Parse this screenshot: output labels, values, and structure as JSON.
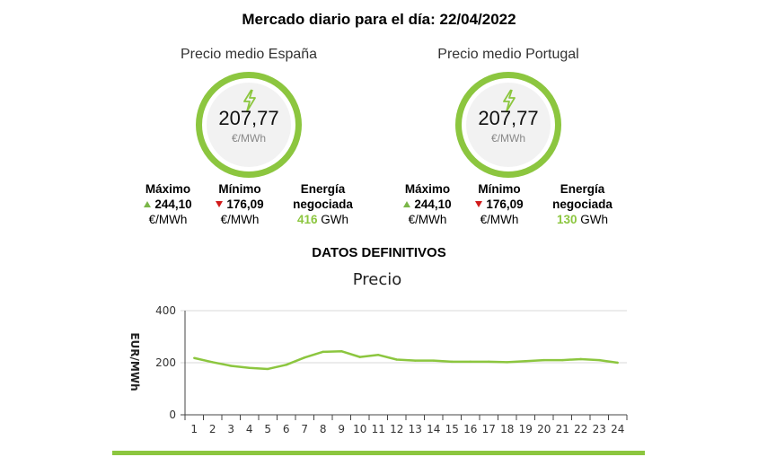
{
  "page": {
    "title": "Mercado diario para el día: 22/04/2022",
    "datos_label": "DATOS DEFINITIVOS"
  },
  "colors": {
    "accent": "#8cc63f",
    "up": "#7ab648",
    "down": "#d11a1a",
    "line": "#8cc63f"
  },
  "markets": [
    {
      "heading": "Precio medio España",
      "price": "207,77",
      "unit": "€/MWh",
      "icon": "lightning-bolt-icon",
      "max_label": "Máximo",
      "max_value": "244,10",
      "max_unit": "€/MWh",
      "min_label": "Mínimo",
      "min_value": "176,09",
      "min_unit": "€/MWh",
      "energy_label_1": "Energía",
      "energy_label_2": "negociada",
      "energy_value": "416",
      "energy_unit": "GWh"
    },
    {
      "heading": "Precio medio Portugal",
      "price": "207,77",
      "unit": "€/MWh",
      "icon": "lightning-bolt-icon",
      "max_label": "Máximo",
      "max_value": "244,10",
      "max_unit": "€/MWh",
      "min_label": "Mínimo",
      "min_value": "176,09",
      "min_unit": "€/MWh",
      "energy_label_1": "Energía",
      "energy_label_2": "negociada",
      "energy_value": "130",
      "energy_unit": "GWh"
    }
  ],
  "chart_data": {
    "type": "line",
    "title": "Precio",
    "xlabel": "",
    "ylabel": "EUR/MWh",
    "ylim": [
      0,
      400
    ],
    "yticks": [
      0,
      200,
      400
    ],
    "grid": true,
    "categories": [
      "1",
      "2",
      "3",
      "4",
      "5",
      "6",
      "7",
      "8",
      "9",
      "10",
      "11",
      "12",
      "13",
      "14",
      "15",
      "16",
      "17",
      "18",
      "19",
      "20",
      "21",
      "22",
      "23",
      "24"
    ],
    "series": [
      {
        "values": [
          218,
          202,
          188,
          180,
          176,
          192,
          220,
          242,
          244,
          222,
          230,
          212,
          208,
          208,
          204,
          204,
          204,
          202,
          206,
          210,
          210,
          214,
          210,
          200
        ]
      }
    ]
  }
}
